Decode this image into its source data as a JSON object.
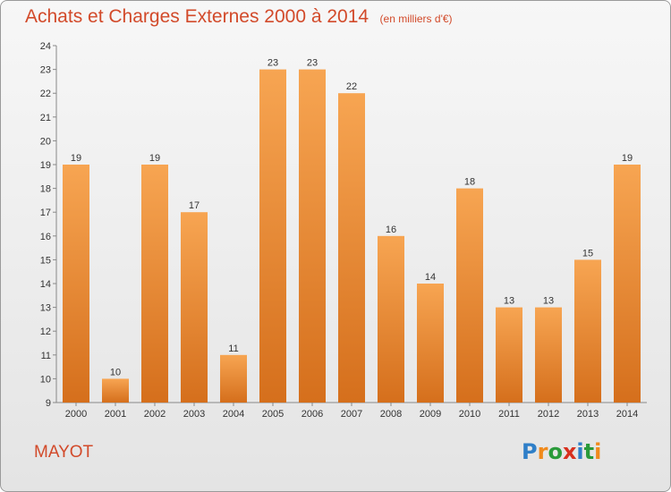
{
  "title": "Achats et Charges Externes 2000 à 2014",
  "subtitle": "(en milliers d'€)",
  "commune": "MAYOT",
  "logo": {
    "letters": [
      "P",
      "r",
      "o",
      "x",
      "i",
      "t",
      "i"
    ],
    "colors": [
      "#2f7fc8",
      "#f08a1c",
      "#2a9a3a",
      "#d8301e",
      "#2f7fc8",
      "#2a9a3a",
      "#f08a1c"
    ]
  },
  "colors": {
    "title": "#d24a2a",
    "bar_light": "#f7a552",
    "bar_dark": "#d56f1c",
    "axis_text": "#333333"
  },
  "chart_data": {
    "type": "bar",
    "categories": [
      "2000",
      "2001",
      "2002",
      "2003",
      "2004",
      "2005",
      "2006",
      "2007",
      "2008",
      "2009",
      "2010",
      "2011",
      "2012",
      "2013",
      "2014"
    ],
    "values": [
      19,
      10,
      19,
      17,
      11,
      23,
      23,
      22,
      16,
      14,
      18,
      13,
      13,
      15,
      19
    ],
    "title": "Achats et Charges Externes 2000 à 2014",
    "subtitle": "(en milliers d'€)",
    "ylim": [
      9,
      24
    ],
    "yticks": [
      9,
      10,
      11,
      12,
      13,
      14,
      15,
      16,
      17,
      18,
      19,
      20,
      21,
      22,
      23,
      24
    ],
    "grid": false,
    "data_labels": true
  }
}
